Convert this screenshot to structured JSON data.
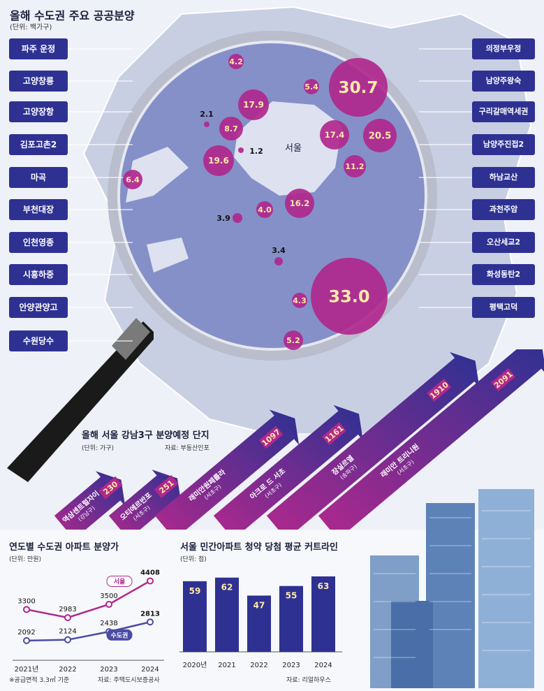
{
  "map": {
    "title": "올해 수도권 주요 공공분양",
    "unit": "(단위: 백가구)",
    "seoul_label": "서울",
    "left_labels": [
      "파주 운정",
      "고양창릉",
      "고양장항",
      "김포고촌2",
      "마곡",
      "부천대장",
      "인천영종",
      "시흥하중",
      "안양관양고",
      "수원당수"
    ],
    "right_labels": [
      "의정부우정",
      "남양주왕숙",
      "구리갈매역세권",
      "남양주진접2",
      "하남교산",
      "과천주암",
      "오산세교2",
      "화성동탄2",
      "평택고덕"
    ],
    "bubbles": [
      "4.2",
      "5.4",
      "30.7",
      "17.9",
      "2.1",
      "8.7",
      "1.2",
      "17.4",
      "20.5",
      "19.6",
      "11.2",
      "6.4",
      "16.2",
      "3.9",
      "4.0",
      "3.4",
      "4.3",
      "33.0",
      "5.2"
    ]
  },
  "gangnam": {
    "title": "올해 서울 강남3구 분양예정 단지",
    "unit": "(단위: 가구)",
    "source": "자료: 부동산인포",
    "items": [
      {
        "name": "역삼센트럴자이",
        "district": "(강남구)",
        "value": "230"
      },
      {
        "name": "오티에르반포",
        "district": "(서초구)",
        "value": "251"
      },
      {
        "name": "래미안원페를라",
        "district": "(서초구)",
        "value": "1097"
      },
      {
        "name": "아크로 드 서초",
        "district": "(서초구)",
        "value": "1161"
      },
      {
        "name": "잠실르엘",
        "district": "(송파구)",
        "value": "1910"
      },
      {
        "name": "래미안 트리니원",
        "district": "(서초구)",
        "value": "2091"
      }
    ]
  },
  "line_chart": {
    "title": "연도별 수도권 아파트 분양가",
    "unit": "(단위: 만원)",
    "footnote": "※공급면적 3.3㎡ 기준",
    "source": "자료: 주택도시보증공사"
  },
  "bar_chart": {
    "title": "서울 민간아파트 청약 당첨 평균 커트라인",
    "unit": "(단위: 점)",
    "source": "자료: 리얼하우스"
  },
  "chart_data": [
    {
      "type": "line",
      "title": "연도별 수도권 아파트 분양가",
      "x": [
        "2021년",
        "2022",
        "2023",
        "2024"
      ],
      "series": [
        {
          "name": "서울",
          "values": [
            3300,
            2983,
            3500,
            4408
          ],
          "color": "#b0288d"
        },
        {
          "name": "수도권",
          "values": [
            2092,
            2124,
            2438,
            2813
          ],
          "color": "#4b4ba3"
        }
      ],
      "ylim": [
        1600,
        4800
      ]
    },
    {
      "type": "bar",
      "title": "서울 민간아파트 청약 당첨 평균 커트라인",
      "categories": [
        "2020년",
        "2021",
        "2022",
        "2023",
        "2024"
      ],
      "values": [
        59,
        62,
        47,
        55,
        63
      ],
      "ylim": [
        0,
        70
      ],
      "color": "#2e3192"
    }
  ]
}
